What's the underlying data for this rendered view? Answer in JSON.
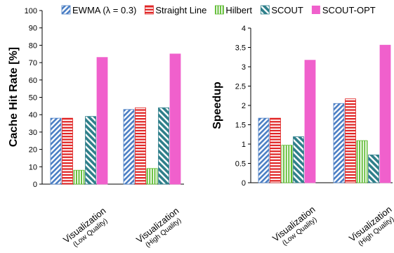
{
  "legend": {
    "entries": [
      {
        "label": "EWMA (λ = 0.3)",
        "color": "#4a7ec4",
        "pattern": "diagonal-hatch"
      },
      {
        "label": "Straight Line",
        "color": "#e02020",
        "pattern": "horizontal-hatch"
      },
      {
        "label": "Hilbert",
        "color": "#5aba2c",
        "pattern": "vertical-hatch"
      },
      {
        "label": "SCOUT",
        "color": "#2e7f8a",
        "pattern": "wide-diagonal-hatch"
      },
      {
        "label": "SCOUT-OPT",
        "color": "#f060cc",
        "pattern": "solid"
      }
    ]
  },
  "chart_data": [
    {
      "type": "bar",
      "ylabel": "Cache Hit Rate [%]",
      "xlabel": "",
      "ylim": [
        0,
        100
      ],
      "yticks": [
        "0",
        "10",
        "20",
        "30",
        "40",
        "50",
        "60",
        "70",
        "80",
        "90",
        "100"
      ],
      "categories": [
        [
          "Visualization",
          "(Low Quality)"
        ],
        [
          "Visualization",
          "(High Quality)"
        ]
      ],
      "series": [
        {
          "name": "EWMA (λ = 0.3)",
          "values": [
            38,
            43
          ]
        },
        {
          "name": "Straight Line",
          "values": [
            38,
            44
          ]
        },
        {
          "name": "Hilbert",
          "values": [
            8,
            9
          ]
        },
        {
          "name": "SCOUT",
          "values": [
            39,
            44
          ]
        },
        {
          "name": "SCOUT-OPT",
          "values": [
            73,
            75
          ]
        }
      ],
      "grid": false,
      "legend": "top"
    },
    {
      "type": "bar",
      "ylabel": "Speedup",
      "xlabel": "",
      "ylim": [
        0,
        4
      ],
      "yticks": [
        "0",
        "0.5",
        "1",
        "1.5",
        "2",
        "2.5",
        "3",
        "3.5",
        "4"
      ],
      "categories": [
        [
          "Visualization",
          "(Low Quality)"
        ],
        [
          "Visualization",
          "(High Quality)"
        ]
      ],
      "series": [
        {
          "name": "EWMA (λ = 0.3)",
          "values": [
            1.67,
            2.05
          ]
        },
        {
          "name": "Straight Line",
          "values": [
            1.67,
            2.17
          ]
        },
        {
          "name": "Hilbert",
          "values": [
            0.97,
            1.09
          ]
        },
        {
          "name": "SCOUT",
          "values": [
            1.19,
            0.72
          ]
        },
        {
          "name": "SCOUT-OPT",
          "values": [
            3.17,
            3.56
          ]
        }
      ],
      "grid": false,
      "legend": "top"
    }
  ]
}
